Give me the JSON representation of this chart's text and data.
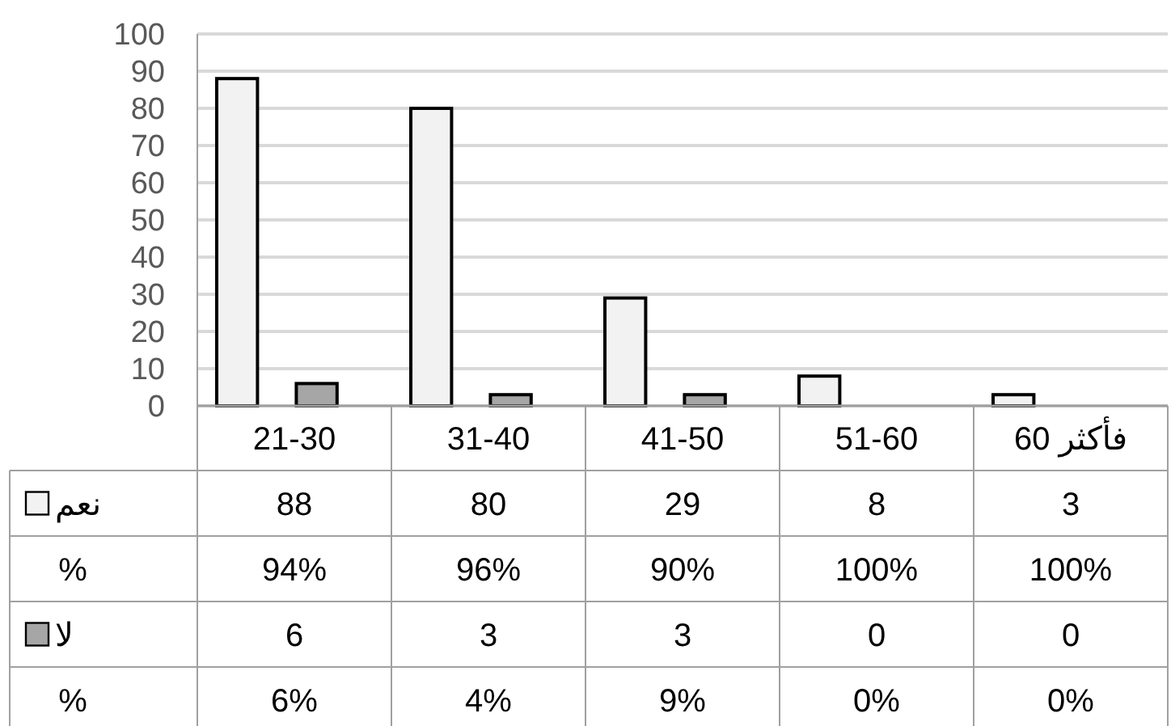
{
  "chart_data": {
    "type": "bar",
    "categories": [
      "21-30",
      "31-40",
      "41-50",
      "51-60",
      "فأكثر 60"
    ],
    "series": [
      {
        "name": "نعم",
        "color": "#f2f2f2",
        "values": [
          88,
          80,
          29,
          8,
          3
        ]
      },
      {
        "name": "لا",
        "color": "#a6a6a6",
        "values": [
          6,
          3,
          3,
          0,
          0
        ]
      }
    ],
    "ylim": [
      0,
      100
    ],
    "yticks": [
      0,
      10,
      20,
      30,
      40,
      50,
      60,
      70,
      80,
      90,
      100
    ],
    "grid": "y",
    "legend": "bottom left",
    "data_labels": true,
    "annotations": [
      "%",
      "94%",
      "96%",
      "90%",
      "100%",
      "100%",
      "%",
      "6%",
      "4%",
      "9%",
      "0%",
      "0%"
    ]
  }
}
